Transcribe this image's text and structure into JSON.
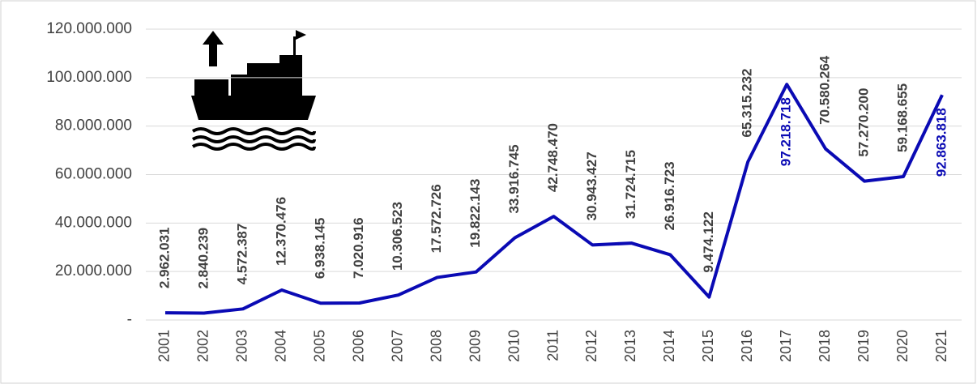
{
  "chart_data": {
    "type": "line",
    "categories": [
      "2001",
      "2002",
      "2003",
      "2004",
      "2005",
      "2006",
      "2007",
      "2008",
      "2009",
      "2010",
      "2011",
      "2012",
      "2013",
      "2014",
      "2015",
      "2016",
      "2017",
      "2018",
      "2019",
      "2020",
      "2021"
    ],
    "series": [
      {
        "color": "#0a0ab4",
        "values": [
          2962031,
          2840239,
          4572387,
          12370476,
          6938145,
          7020916,
          10306523,
          17572726,
          19822143,
          33916745,
          42748470,
          30943427,
          31724715,
          26916723,
          9474122,
          65315232,
          97218718,
          70580264,
          57270200,
          59168655,
          92863818
        ],
        "value_labels": [
          "2.962.031",
          "2.840.239",
          "4.572.387",
          "12.370.476",
          "6.938.145",
          "7.020.916",
          "10.306.523",
          "17.572.726",
          "19.822.143",
          "33.916.745",
          "42.748.470",
          "30.943.427",
          "31.724.715",
          "26.916.723",
          "9.474.122",
          "65.315.232",
          "97.218.718",
          "70.580.264",
          "57.270.200",
          "59.168.655",
          "92.863.818"
        ]
      }
    ],
    "ylim": [
      0,
      120000000
    ],
    "yticks": [
      {
        "value": 0,
        "label": "-"
      },
      {
        "value": 20000000,
        "label": "20.000.000"
      },
      {
        "value": 40000000,
        "label": "40.000.000"
      },
      {
        "value": 60000000,
        "label": "60.000.000"
      },
      {
        "value": 80000000,
        "label": "80.000.000"
      },
      {
        "value": 100000000,
        "label": "100.000.000"
      },
      {
        "value": 120000000,
        "label": "120.000.000"
      }
    ],
    "grid": true
  }
}
